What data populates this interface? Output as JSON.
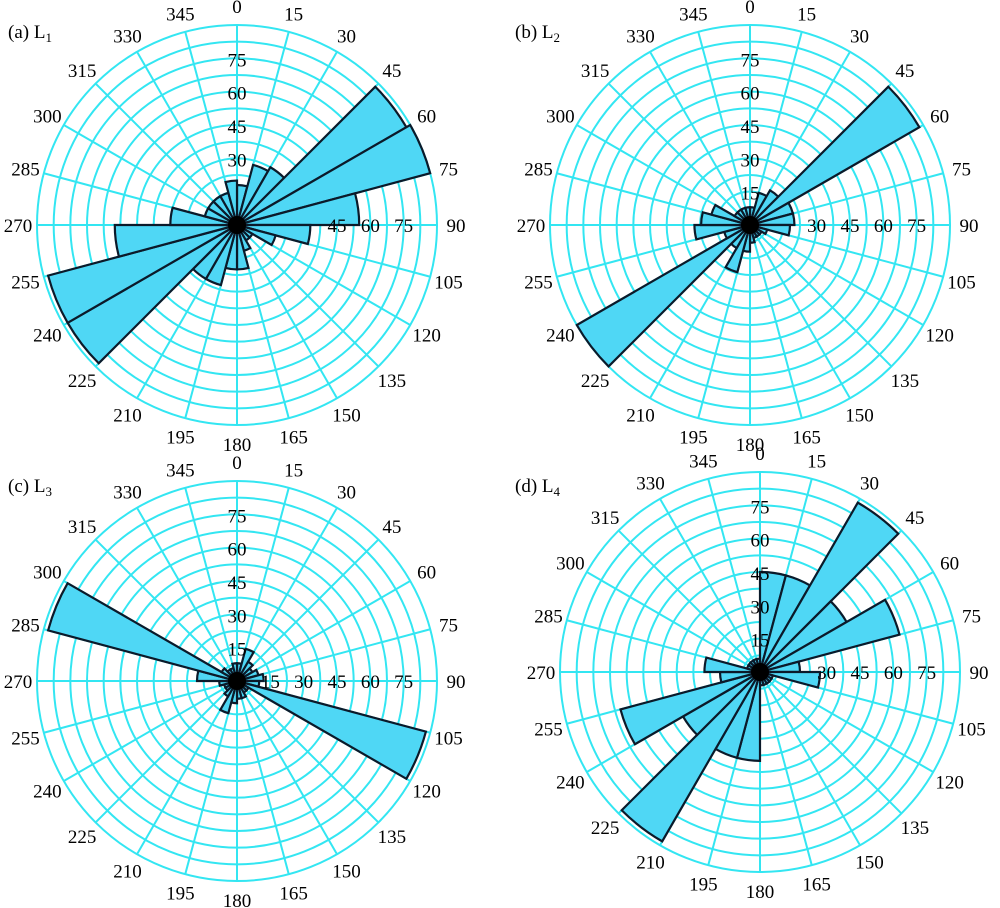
{
  "colors": {
    "petal": "#4fd7f5",
    "grid": "#33e6f2",
    "outline": "#0b1a2a"
  },
  "chart_data": [
    {
      "type": "rose",
      "panel_label": "(a) L",
      "panel_sub": "1",
      "rmax": 90,
      "bin_width": 15,
      "angle_labels": [
        "0",
        "15",
        "30",
        "45",
        "60",
        "75",
        "90",
        "105",
        "120",
        "135",
        "150",
        "165",
        "180",
        "195",
        "210",
        "225",
        "240",
        "255",
        "270",
        "285",
        "300",
        "315",
        "330",
        "345"
      ],
      "radial_labels": [
        "30",
        "45",
        "60",
        "75"
      ],
      "radial_labels_right": [
        "45",
        "60",
        "75"
      ],
      "bins": [
        {
          "start": 0,
          "value": 18
        },
        {
          "start": 15,
          "value": 28
        },
        {
          "start": 30,
          "value": 30
        },
        {
          "start": 45,
          "value": 88
        },
        {
          "start": 60,
          "value": 90
        },
        {
          "start": 75,
          "value": 55
        },
        {
          "start": 90,
          "value": 33
        },
        {
          "start": 105,
          "value": 18
        },
        {
          "start": 120,
          "value": 8
        },
        {
          "start": 135,
          "value": 8
        },
        {
          "start": 150,
          "value": 12
        },
        {
          "start": 165,
          "value": 20
        },
        {
          "start": 180,
          "value": 20
        },
        {
          "start": 195,
          "value": 28
        },
        {
          "start": 210,
          "value": 28
        },
        {
          "start": 225,
          "value": 88
        },
        {
          "start": 240,
          "value": 88
        },
        {
          "start": 255,
          "value": 55
        },
        {
          "start": 270,
          "value": 30
        },
        {
          "start": 285,
          "value": 15
        },
        {
          "start": 300,
          "value": 15
        },
        {
          "start": 315,
          "value": 15
        },
        {
          "start": 330,
          "value": 15
        },
        {
          "start": 345,
          "value": 20
        }
      ]
    },
    {
      "type": "rose",
      "panel_label": "(b) L",
      "panel_sub": "2",
      "rmax": 90,
      "bin_width": 15,
      "angle_labels": [
        "0",
        "15",
        "30",
        "45",
        "60",
        "75",
        "90",
        "105",
        "120",
        "135",
        "150",
        "165",
        "180",
        "195",
        "210",
        "225",
        "240",
        "255",
        "270",
        "285",
        "300",
        "315",
        "330",
        "345"
      ],
      "radial_labels": [
        "15",
        "30",
        "45",
        "60",
        "75"
      ],
      "radial_labels_right": [
        "30",
        "45",
        "60",
        "75"
      ],
      "bins": [
        {
          "start": 0,
          "value": 8
        },
        {
          "start": 15,
          "value": 15
        },
        {
          "start": 30,
          "value": 18
        },
        {
          "start": 45,
          "value": 88
        },
        {
          "start": 60,
          "value": 20
        },
        {
          "start": 75,
          "value": 20
        },
        {
          "start": 90,
          "value": 18
        },
        {
          "start": 105,
          "value": 8
        },
        {
          "start": 120,
          "value": 6
        },
        {
          "start": 135,
          "value": 6
        },
        {
          "start": 150,
          "value": 6
        },
        {
          "start": 165,
          "value": 8
        },
        {
          "start": 180,
          "value": 12
        },
        {
          "start": 195,
          "value": 22
        },
        {
          "start": 210,
          "value": 12
        },
        {
          "start": 225,
          "value": 90
        },
        {
          "start": 240,
          "value": 12
        },
        {
          "start": 255,
          "value": 25
        },
        {
          "start": 270,
          "value": 22
        },
        {
          "start": 285,
          "value": 18
        },
        {
          "start": 300,
          "value": 8
        },
        {
          "start": 315,
          "value": 8
        },
        {
          "start": 330,
          "value": 8
        },
        {
          "start": 345,
          "value": 8
        }
      ]
    },
    {
      "type": "rose",
      "panel_label": "(c) L",
      "panel_sub": "3",
      "rmax": 90,
      "bin_width": 15,
      "angle_labels": [
        "0",
        "15",
        "30",
        "45",
        "60",
        "75",
        "90",
        "105",
        "120",
        "135",
        "150",
        "165",
        "180",
        "195",
        "210",
        "225",
        "240",
        "255",
        "270",
        "285",
        "300",
        "315",
        "330",
        "345"
      ],
      "radial_labels": [
        "15",
        "30",
        "45",
        "60",
        "75"
      ],
      "radial_labels_right": [
        "15",
        "30",
        "45",
        "60",
        "75"
      ],
      "bins": [
        {
          "start": 0,
          "value": 8
        },
        {
          "start": 15,
          "value": 15
        },
        {
          "start": 30,
          "value": 10
        },
        {
          "start": 45,
          "value": 8
        },
        {
          "start": 60,
          "value": 10
        },
        {
          "start": 75,
          "value": 12
        },
        {
          "start": 90,
          "value": 10
        },
        {
          "start": 105,
          "value": 88
        },
        {
          "start": 120,
          "value": 6
        },
        {
          "start": 135,
          "value": 6
        },
        {
          "start": 150,
          "value": 8
        },
        {
          "start": 165,
          "value": 8
        },
        {
          "start": 180,
          "value": 10
        },
        {
          "start": 195,
          "value": 15
        },
        {
          "start": 210,
          "value": 8
        },
        {
          "start": 225,
          "value": 6
        },
        {
          "start": 240,
          "value": 6
        },
        {
          "start": 255,
          "value": 8
        },
        {
          "start": 270,
          "value": 18
        },
        {
          "start": 285,
          "value": 88
        },
        {
          "start": 300,
          "value": 8
        },
        {
          "start": 315,
          "value": 6
        },
        {
          "start": 330,
          "value": 6
        },
        {
          "start": 345,
          "value": 8
        }
      ]
    },
    {
      "type": "rose",
      "panel_label": "(d) L",
      "panel_sub": "4",
      "rmax": 90,
      "bin_width": 15,
      "angle_labels": [
        "0",
        "15",
        "30",
        "45",
        "60",
        "75",
        "90",
        "105",
        "120",
        "135",
        "150",
        "165",
        "180",
        "195",
        "210",
        "225",
        "240",
        "255",
        "270",
        "285",
        "300",
        "315",
        "330",
        "345"
      ],
      "radial_labels": [
        "15",
        "30",
        "45",
        "60",
        "75"
      ],
      "radial_labels_right": [
        "30",
        "45",
        "60",
        "75"
      ],
      "bins": [
        {
          "start": 0,
          "value": 45
        },
        {
          "start": 15,
          "value": 45
        },
        {
          "start": 30,
          "value": 88
        },
        {
          "start": 45,
          "value": 45
        },
        {
          "start": 60,
          "value": 65
        },
        {
          "start": 75,
          "value": 18
        },
        {
          "start": 90,
          "value": 27
        },
        {
          "start": 105,
          "value": 6
        },
        {
          "start": 120,
          "value": 6
        },
        {
          "start": 135,
          "value": 6
        },
        {
          "start": 150,
          "value": 6
        },
        {
          "start": 165,
          "value": 6
        },
        {
          "start": 180,
          "value": 40
        },
        {
          "start": 195,
          "value": 40
        },
        {
          "start": 210,
          "value": 88
        },
        {
          "start": 225,
          "value": 40
        },
        {
          "start": 240,
          "value": 65
        },
        {
          "start": 255,
          "value": 18
        },
        {
          "start": 270,
          "value": 25
        },
        {
          "start": 285,
          "value": 6
        },
        {
          "start": 300,
          "value": 6
        },
        {
          "start": 315,
          "value": 6
        },
        {
          "start": 330,
          "value": 6
        },
        {
          "start": 345,
          "value": 6
        }
      ]
    }
  ]
}
